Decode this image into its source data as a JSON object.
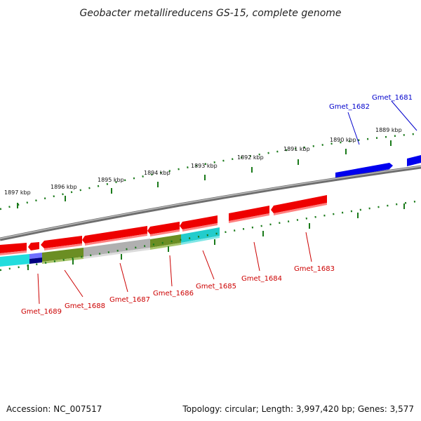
{
  "title": "Geobacter metallireducens GS-15, complete genome",
  "footer": {
    "accession": "Accession: NC_007517",
    "summary": "Topology: circular; Length: 3,997,420 bp; Genes: 3,577"
  },
  "ruler_ticks": [
    "1897 kbp",
    "1896 kbp",
    "1895 kbp",
    "1894 kbp",
    "1893 kbp",
    "1892 kbp",
    "1891 kbp",
    "1890 kbp",
    "1889 kbp"
  ],
  "gene_labels_forward": [
    "Gmet_1682",
    "Gmet_1681"
  ],
  "gene_labels_reverse": [
    "Gmet_1689",
    "Gmet_1688",
    "Gmet_1687",
    "Gmet_1686",
    "Gmet_1685",
    "Gmet_1684",
    "Gmet_1683"
  ],
  "colors": {
    "forward_gene": "#0000ee",
    "reverse_gene": "#ee0000",
    "backbone": "#888888",
    "tick": "#1a7a1a",
    "cog_cyan": "#22cccc",
    "cog_olive": "#6b8e23",
    "cog_gray": "#b0b0b0",
    "cog_navy": "#000080"
  }
}
